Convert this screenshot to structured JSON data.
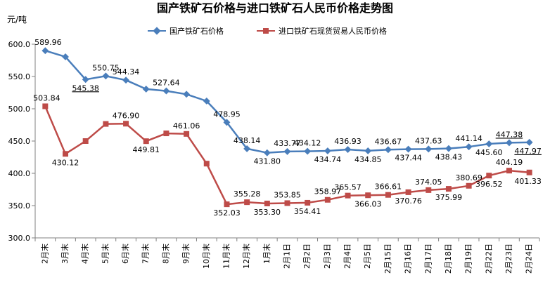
{
  "chart_data": {
    "type": "line",
    "title": "国产铁矿石价格与进口铁矿石人民币价格走势图",
    "ylabel": "元/吨",
    "ylim": [
      300,
      600
    ],
    "yticks": [
      "300.0",
      "350.0",
      "400.0",
      "450.0",
      "500.0",
      "550.0",
      "600.0"
    ],
    "grid": false,
    "legend_position": "top",
    "categories": [
      "2月末",
      "3月末",
      "4月末",
      "5月末",
      "6月末",
      "7月末",
      "8月末",
      "9月末",
      "10月末",
      "11月末",
      "12月末",
      "1月末",
      "2月1日",
      "2月2日",
      "2月3日",
      "2月4日",
      "2月5日",
      "2月15日",
      "2月16日",
      "2月17日",
      "2月18日",
      "2月19日",
      "2月22日",
      "2月23日",
      "2月24日"
    ],
    "series": [
      {
        "name": "国产铁矿石价格",
        "color": "#4a7ebb",
        "marker": "diamond",
        "values": [
          589.96,
          580.5,
          545.38,
          550.75,
          544.34,
          530.5,
          527.64,
          522.5,
          512,
          478.95,
          438.14,
          431.8,
          433.77,
          434.12,
          434.74,
          436.93,
          434.85,
          436.67,
          437.44,
          437.63,
          438.43,
          441.14,
          445.6,
          447.38,
          447.97
        ],
        "labels": [
          "589.96",
          "",
          "545.38",
          "550.75",
          "544.34",
          "",
          "527.64",
          "",
          "",
          "478.95",
          "438.14",
          "431.80",
          "433.77",
          "434.12",
          "434.74",
          "436.93",
          "434.85",
          "436.67",
          "437.44",
          "437.63",
          "438.43",
          "441.14",
          "445.60",
          "447.38",
          "447.97"
        ]
      },
      {
        "name": "进口铁矿石现货贸易人民币价格",
        "color": "#be4b48",
        "marker": "square",
        "values": [
          503.84,
          430.12,
          450,
          476.5,
          476.9,
          449.81,
          461.9,
          461.06,
          415,
          352.03,
          355.28,
          353.3,
          353.85,
          354.41,
          358.97,
          365.57,
          366.03,
          366.61,
          370.76,
          374.05,
          375.99,
          380.69,
          396.52,
          404.19,
          401.33
        ],
        "labels": [
          "503.84",
          "430.12",
          "",
          "",
          "476.90",
          "449.81",
          "",
          "461.06",
          "",
          "352.03",
          "355.28",
          "353.30",
          "353.85",
          "354.41",
          "358.97",
          "365.57",
          "366.03",
          "366.61",
          "370.76",
          "374.05",
          "375.99",
          "380.69",
          "396.52",
          "404.19",
          "401.33"
        ]
      }
    ]
  }
}
